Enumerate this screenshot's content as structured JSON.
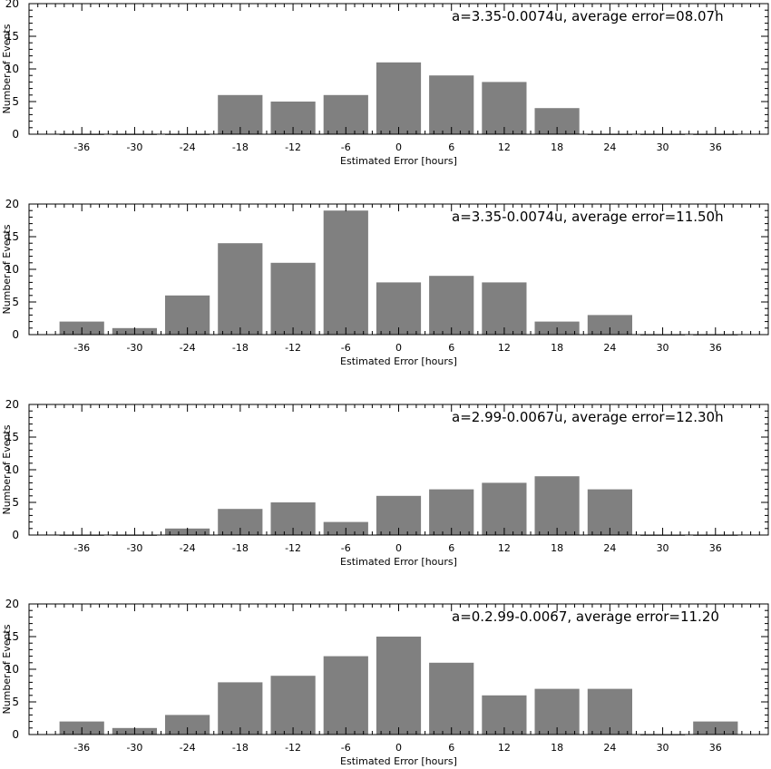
{
  "colors": {
    "bar": "#808080",
    "axis": "#000000",
    "background": "#ffffff"
  },
  "chart_data": [
    {
      "type": "bar",
      "title": "a=3.35-0.0074u, average error=08.07h",
      "xlabel": "Estimated Error [hours]",
      "ylabel": "Number of Events",
      "categories": [
        "-36",
        "-30",
        "-24",
        "-18",
        "-12",
        "-6",
        "0",
        "6",
        "12",
        "18",
        "24",
        "30",
        "36"
      ],
      "values": [
        0,
        0,
        0,
        6,
        5,
        6,
        11,
        9,
        8,
        4,
        0,
        0,
        0
      ],
      "xlim": [
        -42,
        42
      ],
      "ylim": [
        0,
        20
      ],
      "yticks": [
        0,
        5,
        10,
        15,
        20
      ]
    },
    {
      "type": "bar",
      "title": "a=3.35-0.0074u, average error=11.50h",
      "xlabel": "Estimated Error [hours]",
      "ylabel": "Number of Events",
      "categories": [
        "-36",
        "-30",
        "-24",
        "-18",
        "-12",
        "-6",
        "0",
        "6",
        "12",
        "18",
        "24",
        "30",
        "36"
      ],
      "values": [
        2,
        1,
        6,
        14,
        11,
        19,
        8,
        9,
        8,
        2,
        3,
        0,
        0
      ],
      "xlim": [
        -42,
        42
      ],
      "ylim": [
        0,
        20
      ],
      "yticks": [
        0,
        5,
        10,
        15,
        20
      ]
    },
    {
      "type": "bar",
      "title": "a=2.99-0.0067u, average error=12.30h",
      "xlabel": "Estimated Error [hours]",
      "ylabel": "Number of Events",
      "categories": [
        "-36",
        "-30",
        "-24",
        "-18",
        "-12",
        "-6",
        "0",
        "6",
        "12",
        "18",
        "24",
        "30",
        "36"
      ],
      "values": [
        0,
        0,
        1,
        4,
        5,
        2,
        6,
        7,
        8,
        9,
        7,
        0,
        0
      ],
      "xlim": [
        -42,
        42
      ],
      "ylim": [
        0,
        20
      ],
      "yticks": [
        0,
        5,
        10,
        15,
        20
      ]
    },
    {
      "type": "bar",
      "title": "a=0.2.99-0.0067, average error=11.20",
      "xlabel": "Estimated Error [hours]",
      "ylabel": "Number of Events",
      "categories": [
        "-36",
        "-30",
        "-24",
        "-18",
        "-12",
        "-6",
        "0",
        "6",
        "12",
        "18",
        "24",
        "30",
        "36"
      ],
      "values": [
        2,
        1,
        3,
        8,
        9,
        12,
        15,
        11,
        6,
        7,
        7,
        0,
        2
      ],
      "xlim": [
        -42,
        42
      ],
      "ylim": [
        0,
        20
      ],
      "yticks": [
        0,
        5,
        10,
        15,
        20
      ]
    }
  ]
}
